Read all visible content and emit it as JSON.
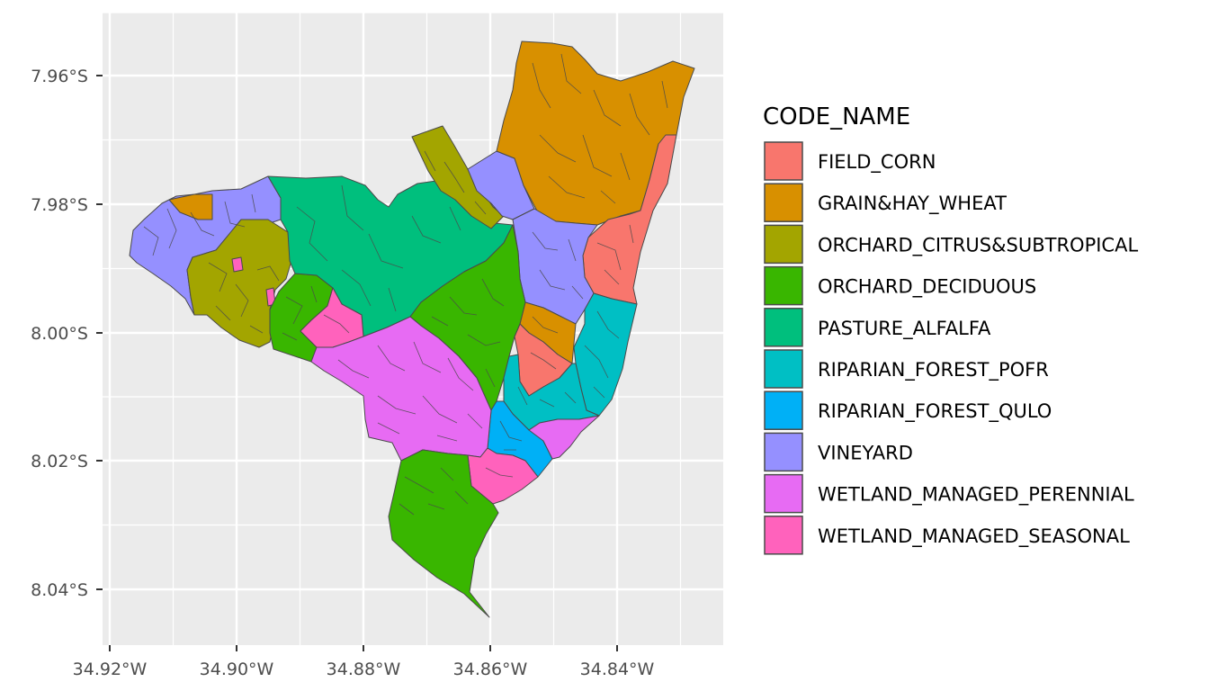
{
  "chart_data": {
    "type": "map",
    "x_ticks": [
      "34.92°W",
      "34.90°W",
      "34.88°W",
      "34.86°W",
      "34.84°W"
    ],
    "y_ticks": [
      "7.96°S",
      "7.98°S",
      "8.00°S",
      "8.02°S",
      "8.04°S"
    ],
    "grid": true,
    "legend": {
      "position": "right",
      "title": "CODE_NAME",
      "entries": [
        {
          "name": "FIELD_CORN",
          "color": "#F8766D"
        },
        {
          "name": "GRAIN&HAY_WHEAT",
          "color": "#D89000"
        },
        {
          "name": "ORCHARD_CITRUS&SUBTROPICAL",
          "color": "#A3A500"
        },
        {
          "name": "ORCHARD_DECIDUOUS",
          "color": "#39B600"
        },
        {
          "name": "PASTURE_ALFALFA",
          "color": "#00BF7D"
        },
        {
          "name": "RIPARIAN_FOREST_POFR",
          "color": "#00BFC4"
        },
        {
          "name": "RIPARIAN_FOREST_QULO",
          "color": "#00B0F6"
        },
        {
          "name": "VINEYARD",
          "color": "#9590FF"
        },
        {
          "name": "WETLAND_MANAGED_PERENNIAL",
          "color": "#E76BF3"
        },
        {
          "name": "WETLAND_MANAGED_SEASONAL",
          "color": "#FF62BC"
        }
      ]
    }
  }
}
